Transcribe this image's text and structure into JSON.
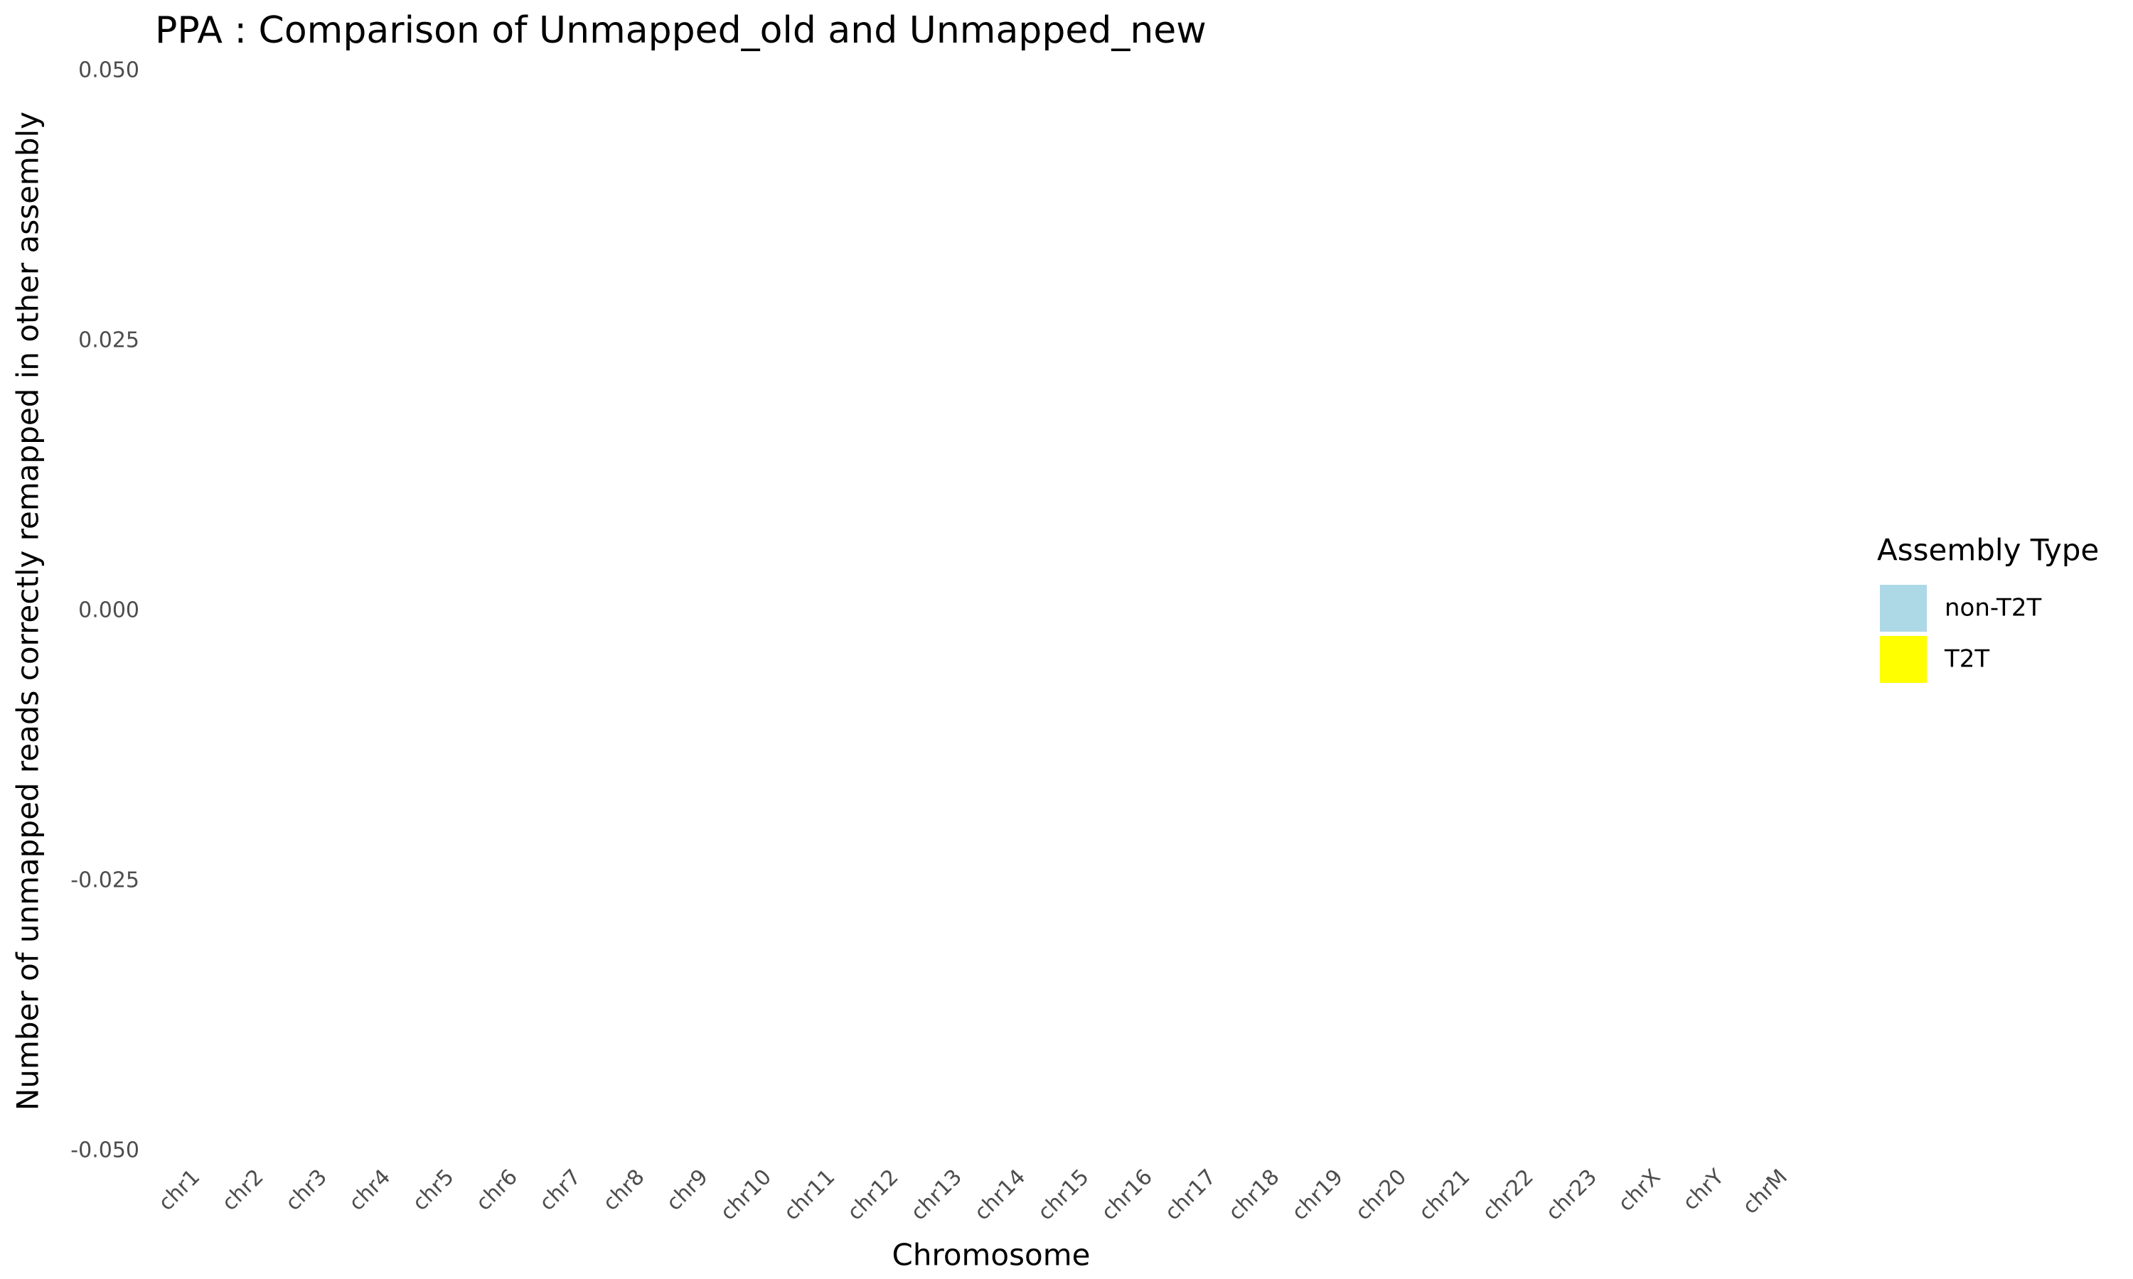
{
  "chart_data": {
    "type": "bar",
    "title": "PPA : Comparison of Unmapped_old and Unmapped_new",
    "x_label": "Chromosome",
    "y_label": "Number of unmapped reads correctly remapped in other assembly",
    "legend_title": "Assembly Type",
    "categories": [
      "chr1",
      "chr2",
      "chr3",
      "chr4",
      "chr5",
      "chr6",
      "chr7",
      "chr8",
      "chr9",
      "chr10",
      "chr11",
      "chr12",
      "chr13",
      "chr14",
      "chr15",
      "chr16",
      "chr17",
      "chr18",
      "chr19",
      "chr20",
      "chr21",
      "chr22",
      "chr23",
      "chrX",
      "chrY",
      "chrM"
    ],
    "series": [
      {
        "name": "non-T2T",
        "color": "#add8e6",
        "values": [
          0,
          0,
          0,
          0,
          0,
          0,
          0,
          0,
          0,
          0,
          0,
          0,
          0,
          0,
          0,
          0,
          0,
          0,
          0,
          0,
          0,
          0,
          0,
          0,
          0,
          0
        ]
      },
      {
        "name": "T2T",
        "color": "#ffff00",
        "values": [
          0,
          0,
          0,
          0,
          0,
          0,
          0,
          0,
          0,
          0,
          0,
          0,
          0,
          0,
          0,
          0,
          0,
          0,
          0,
          0,
          0,
          0,
          0,
          0,
          0,
          0
        ]
      }
    ],
    "ylim": [
      -0.05,
      0.05
    ],
    "yticks": [
      {
        "value": -0.05,
        "label": "-0.050"
      },
      {
        "value": -0.025,
        "label": "-0.025"
      },
      {
        "value": 0,
        "label": "0.000"
      },
      {
        "value": 0.025,
        "label": "0.025"
      },
      {
        "value": 0.05,
        "label": "0.050"
      }
    ],
    "grid": false,
    "legend": "right"
  }
}
